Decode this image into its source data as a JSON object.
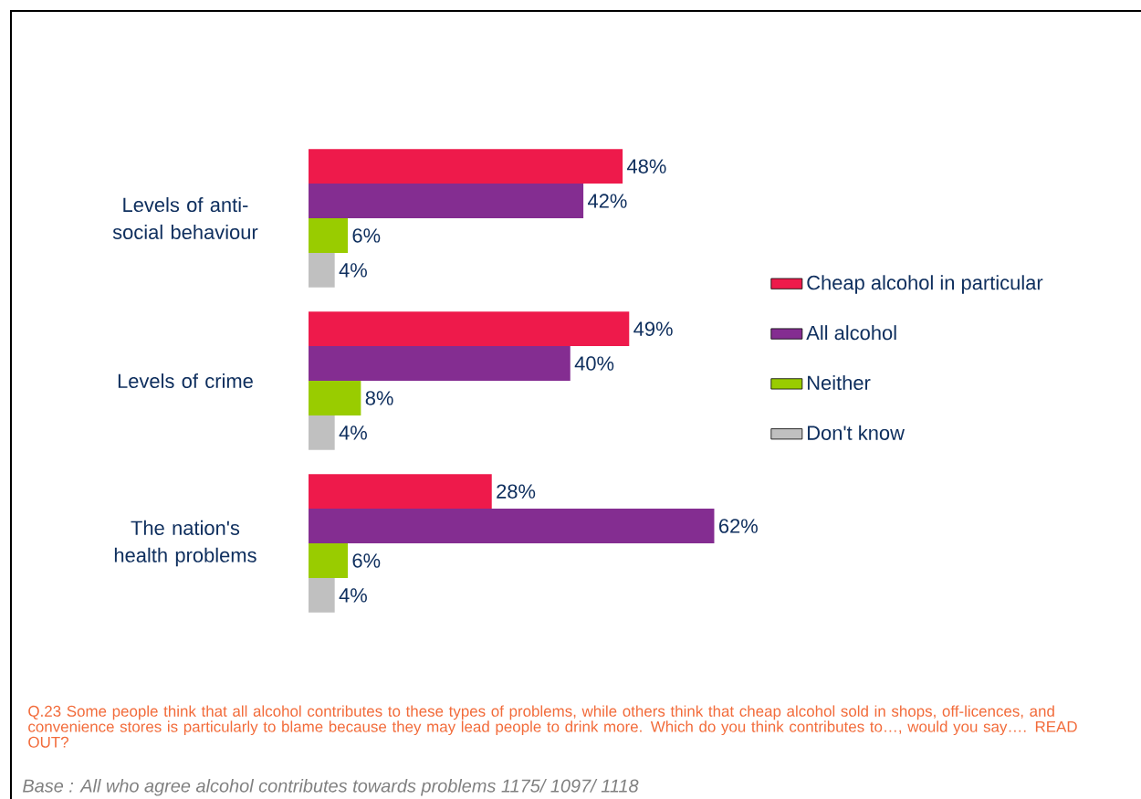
{
  "chart_data": {
    "type": "bar",
    "orientation": "horizontal",
    "categories": [
      "Levels of anti-social behaviour",
      "Levels of crime",
      "The nation's health problems"
    ],
    "series": [
      {
        "name": "Cheap alcohol in particular",
        "color": "#ee1a4b",
        "values": [
          48,
          49,
          28
        ],
        "value_labels": [
          "48%",
          "49%",
          "28%"
        ]
      },
      {
        "name": "All alcohol",
        "color": "#842d91",
        "values": [
          42,
          40,
          62
        ],
        "value_labels": [
          "42%",
          "40%",
          "62%"
        ]
      },
      {
        "name": "Neither",
        "color": "#99cc00",
        "values": [
          6,
          8,
          6
        ],
        "value_labels": [
          "6%",
          "8%",
          "6%"
        ]
      },
      {
        "name": "Don't know",
        "color": "#c0c0c0",
        "values": [
          4,
          4,
          4
        ],
        "value_labels": [
          "4%",
          "4%",
          "4%"
        ]
      }
    ],
    "legend": "right",
    "annotations": [
      "Q.23 Some people think that all alcohol contributes to these types of problems, while others think that cheap alcohol sold in shops, off-licences, and convenience stores is particularly to blame because they may lead people to drink more.  Which do you think contributes to…, would you say…. READ OUT?",
      "Base : All who agree alcohol contributes towards problems  1175/ 1097/ 1118"
    ]
  }
}
